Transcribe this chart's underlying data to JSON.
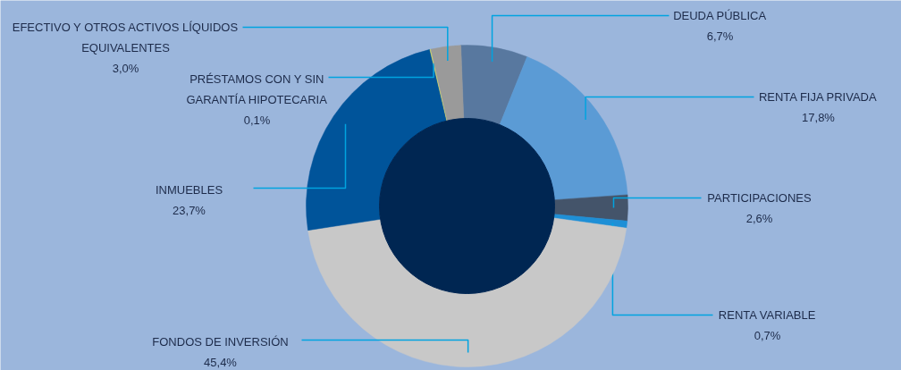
{
  "chart_data": {
    "type": "donut",
    "categories": [
      "DEUDA PÚBLICA",
      "RENTA FIJA PRIVADA",
      "PARTICIPACIONES",
      "RENTA VARIABLE",
      "FONDOS DE INVERSIÓN",
      "INMUEBLES",
      "PRÉSTAMOS CON Y SIN GARANTÍA HIPOTECARIA",
      "EFECTIVO Y OTROS ACTIVOS LÍQUIDOS EQUIVALENTES"
    ],
    "values": [
      6.7,
      17.8,
      2.6,
      0.7,
      45.4,
      23.7,
      0.1,
      3.0
    ],
    "value_labels": [
      "6,7%",
      "17,8%",
      "2,6%",
      "0,7%",
      "45,4%",
      "23,7%",
      "0,1%",
      "3,0%"
    ],
    "colors": [
      "#58789f",
      "#5b9bd5",
      "#44546a",
      "#1e8fd6",
      "#c8c8c8",
      "#00549a",
      "#d4d86a",
      "#9a9a9a"
    ]
  }
}
